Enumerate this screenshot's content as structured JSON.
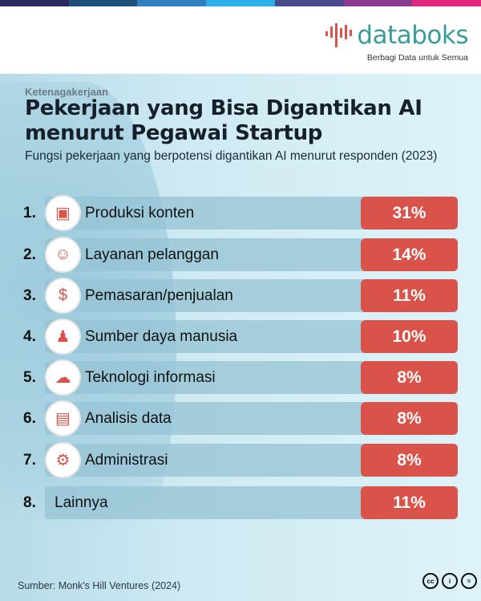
{
  "brand": {
    "name": "databoks",
    "tagline": "Berbagi Data untuk Semua",
    "stripe_colors": [
      "#2a2a5e",
      "#1d4f7a",
      "#2f7fc1",
      "#2bb0e8",
      "#4a4a8f",
      "#8b3a8f",
      "#e0277f"
    ],
    "accent": "#d9534a",
    "logo_color": "#3a9c9b"
  },
  "category": "Ketenagakerjaan",
  "title": "Pekerjaan yang Bisa Digantikan AI menurut Pegawai Startup",
  "subtitle": "Fungsi pekerjaan yang berpotensi digantikan AI menurut responden (2023)",
  "source": "Sumber: Monk's Hill Ventures (2024)",
  "license_icons": [
    "cc-icon",
    "by-icon",
    "nd-icon"
  ],
  "license_marks": [
    "cc",
    "i",
    "="
  ],
  "chart_data": {
    "type": "bar",
    "categories": [
      "Produksi konten",
      "Layanan pelanggan",
      "Pemasaran/penjualan",
      "Sumber daya manusia",
      "Teknologi informasi",
      "Analisis data",
      "Administrasi",
      "Lainnya"
    ],
    "ranks": [
      "1.",
      "2.",
      "3.",
      "4.",
      "5.",
      "6.",
      "7.",
      "8."
    ],
    "values": [
      31,
      14,
      11,
      10,
      8,
      8,
      8,
      11
    ],
    "labels": [
      "31%",
      "14%",
      "11%",
      "10%",
      "8%",
      "8%",
      "8%",
      "11%"
    ],
    "icons": [
      "content-media-icon",
      "customer-service-icon",
      "sales-money-icon",
      "human-resources-icon",
      "it-cloud-icon",
      "data-analysis-icon",
      "administration-icon",
      null
    ],
    "icon_glyphs": [
      "▣",
      "☺",
      "$",
      "♟",
      "☁",
      "▤",
      "⚙",
      null
    ],
    "unit": "%"
  }
}
